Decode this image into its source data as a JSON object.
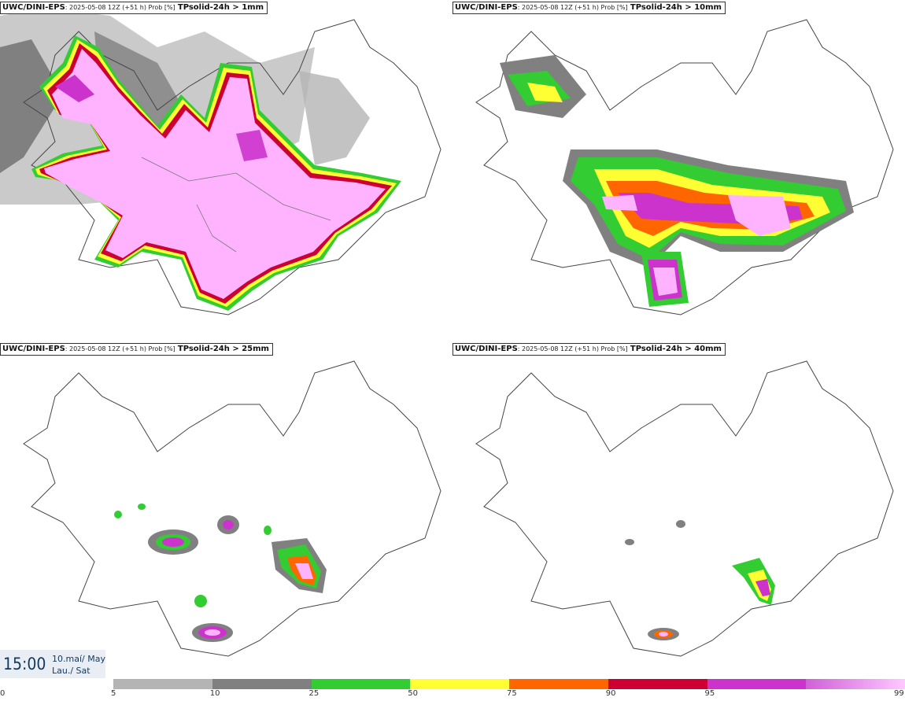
{
  "panels": [
    {
      "model": "UWC/DINI-EPS",
      "meta": ": 2025-05-08 12Z (+51 h) Prob [%]",
      "param": "TPsolid-24h > 1mm"
    },
    {
      "model": "UWC/DINI-EPS",
      "meta": ": 2025-05-08 12Z (+51 h) Prob [%]",
      "param": "TPsolid-24h > 10mm"
    },
    {
      "model": "UWC/DINI-EPS",
      "meta": ": 2025-05-08 12Z (+51 h) Prob [%]",
      "param": "TPsolid-24h > 25mm"
    },
    {
      "model": "UWC/DINI-EPS",
      "meta": ": 2025-05-08 12Z (+51 h) Prob [%]",
      "param": "TPsolid-24h > 40mm"
    }
  ],
  "valid_time": {
    "time": "15:00",
    "date_line1": "10.maí/ May",
    "date_line2": "Lau./ Sat"
  },
  "legend": {
    "ticks": [
      "0",
      "5",
      "10",
      "25",
      "50",
      "75",
      "90",
      "95",
      "99"
    ],
    "colors": [
      "#b4b4b4",
      "#808080",
      "#33cc33",
      "#ffff33",
      "#ff6600",
      "#cc0033",
      "#cc33cc",
      "#ffb3ff"
    ]
  }
}
